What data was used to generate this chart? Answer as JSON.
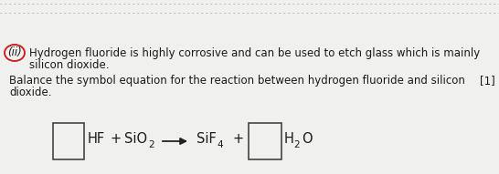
{
  "background_color": "#f0f0ee",
  "text_color": "#1a1a1a",
  "label_ii": "(ii)",
  "circle_color": "#cc2222",
  "para1_line1": "Hydrogen fluoride is highly corrosive and can be used to etch glass which is mainly",
  "para1_line2": "silicon dioxide.",
  "para2_line1": "Balance the symbol equation for the reaction between hydrogen fluoride and silicon",
  "para2_mark": "[1]",
  "para2_line2": "dioxide.",
  "font_size_body": 8.5,
  "font_size_eq": 10.5,
  "font_size_sub": 7.5
}
